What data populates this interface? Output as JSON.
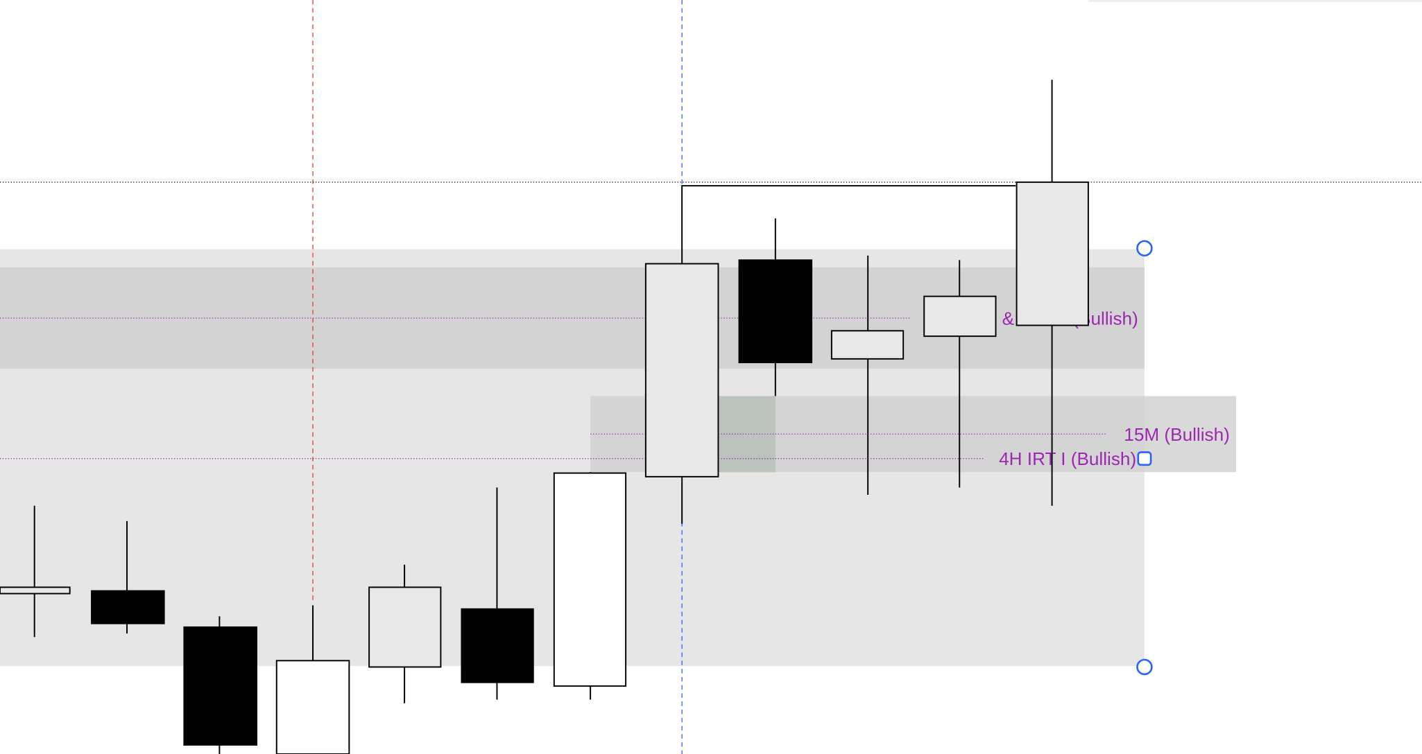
{
  "labels": {
    "top_zone": {
      "amp": "&",
      "bullish": "(Bullish)"
    },
    "m15": "15M (Bullish)",
    "h4": "4H IRT I (Bullish)"
  }
}
